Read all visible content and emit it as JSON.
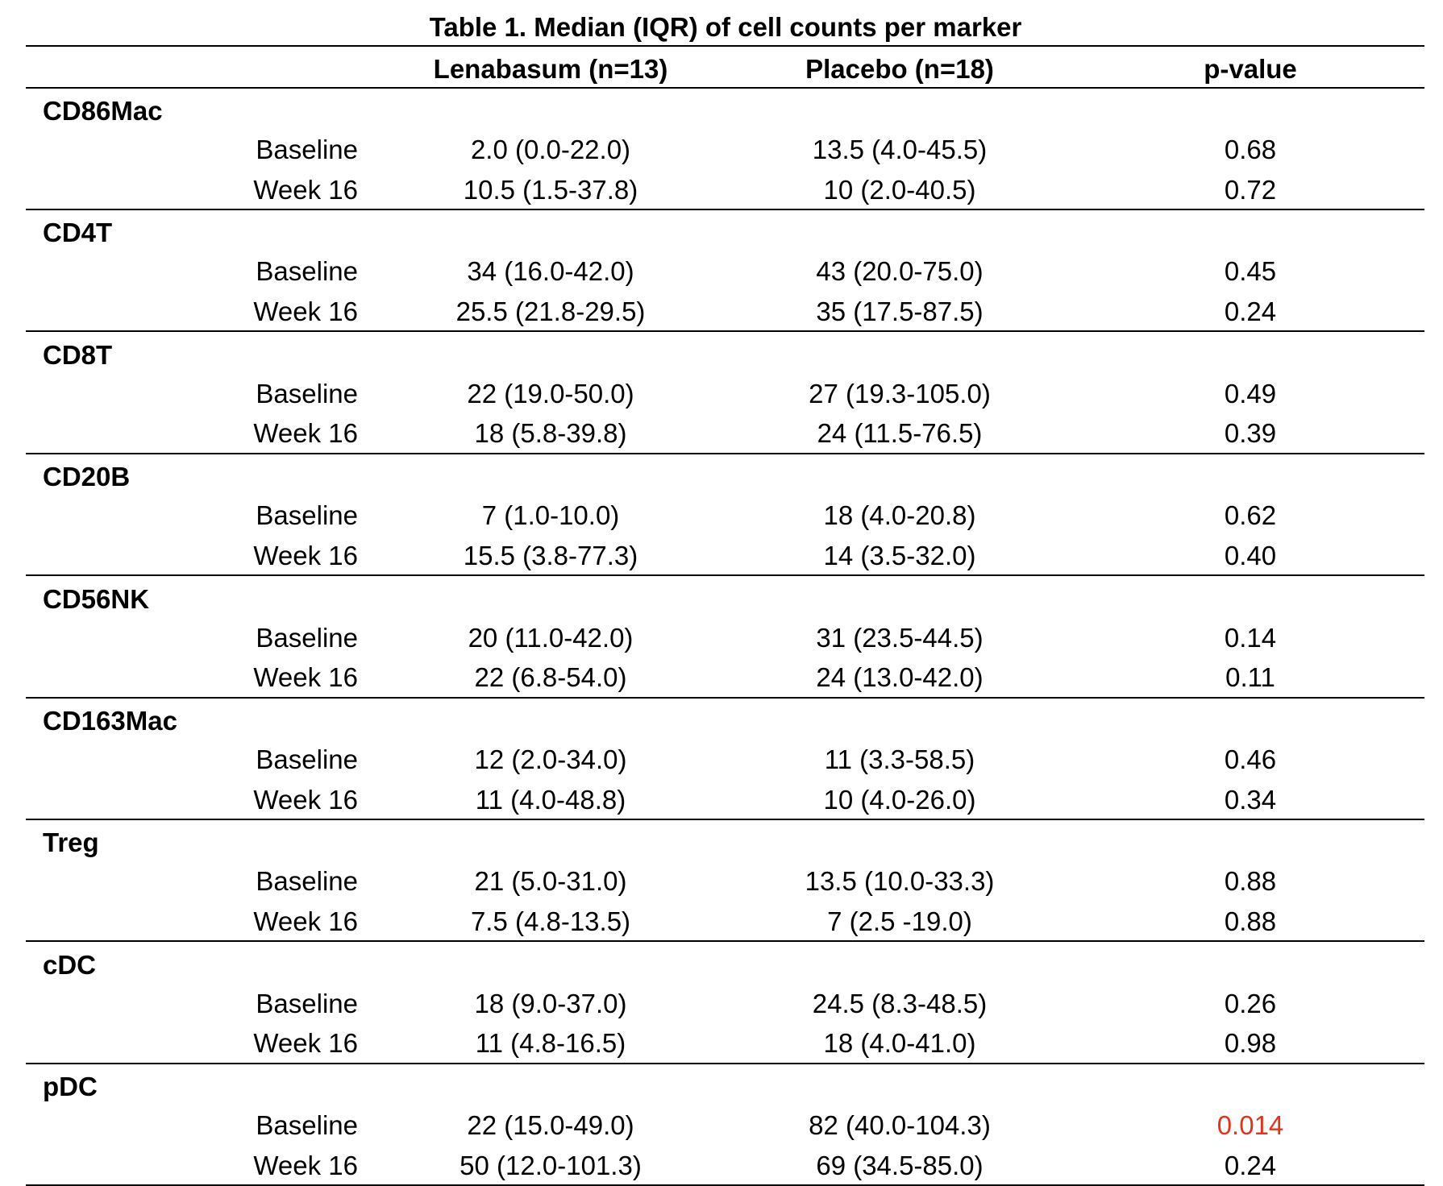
{
  "title": "Table 1. Median (IQR) of cell counts per marker",
  "table": {
    "columns": [
      "Lenabasum (n=13)",
      "Placebo (n=18)",
      "p-value"
    ],
    "groups": [
      {
        "name": "CD86Mac",
        "rows": [
          {
            "label": "Baseline",
            "lenabasum": "2.0 (0.0-22.0)",
            "placebo": "13.5 (4.0-45.5)",
            "p": "0.68"
          },
          {
            "label": "Week 16",
            "lenabasum": "10.5 (1.5-37.8)",
            "placebo": "10 (2.0-40.5)",
            "p": "0.72"
          }
        ]
      },
      {
        "name": "CD4T",
        "rows": [
          {
            "label": "Baseline",
            "lenabasum": "34 (16.0-42.0)",
            "placebo": "43 (20.0-75.0)",
            "p": "0.45"
          },
          {
            "label": "Week 16",
            "lenabasum": "25.5 (21.8-29.5)",
            "placebo": "35 (17.5-87.5)",
            "p": "0.24"
          }
        ]
      },
      {
        "name": "CD8T",
        "rows": [
          {
            "label": "Baseline",
            "lenabasum": "22 (19.0-50.0)",
            "placebo": "27 (19.3-105.0)",
            "p": "0.49"
          },
          {
            "label": "Week 16",
            "lenabasum": "18 (5.8-39.8)",
            "placebo": "24 (11.5-76.5)",
            "p": "0.39"
          }
        ]
      },
      {
        "name": "CD20B",
        "rows": [
          {
            "label": "Baseline",
            "lenabasum": "7 (1.0-10.0)",
            "placebo": "18 (4.0-20.8)",
            "p": "0.62"
          },
          {
            "label": "Week 16",
            "lenabasum": "15.5 (3.8-77.3)",
            "placebo": "14 (3.5-32.0)",
            "p": "0.40"
          }
        ]
      },
      {
        "name": "CD56NK",
        "rows": [
          {
            "label": "Baseline",
            "lenabasum": "20 (11.0-42.0)",
            "placebo": "31 (23.5-44.5)",
            "p": "0.14"
          },
          {
            "label": "Week 16",
            "lenabasum": "22 (6.8-54.0)",
            "placebo": "24 (13.0-42.0)",
            "p": "0.11"
          }
        ]
      },
      {
        "name": "CD163Mac",
        "rows": [
          {
            "label": "Baseline",
            "lenabasum": "12 (2.0-34.0)",
            "placebo": "11 (3.3-58.5)",
            "p": "0.46"
          },
          {
            "label": "Week 16",
            "lenabasum": "11 (4.0-48.8)",
            "placebo": "10 (4.0-26.0)",
            "p": "0.34"
          }
        ]
      },
      {
        "name": "Treg",
        "rows": [
          {
            "label": "Baseline",
            "lenabasum": "21 (5.0-31.0)",
            "placebo": "13.5 (10.0-33.3)",
            "p": "0.88"
          },
          {
            "label": "Week 16",
            "lenabasum": "7.5 (4.8-13.5)",
            "placebo": "7 (2.5 -19.0)",
            "p": "0.88"
          }
        ]
      },
      {
        "name": "cDC",
        "rows": [
          {
            "label": "Baseline",
            "lenabasum": "18 (9.0-37.0)",
            "placebo": "24.5 (8.3-48.5)",
            "p": "0.26"
          },
          {
            "label": "Week 16",
            "lenabasum": "11 (4.8-16.5)",
            "placebo": "18 (4.0-41.0)",
            "p": "0.98"
          }
        ]
      },
      {
        "name": "pDC",
        "rows": [
          {
            "label": "Baseline",
            "lenabasum": "22 (15.0-49.0)",
            "placebo": "82 (40.0-104.3)",
            "p": "0.014",
            "p_color": "#e2341d"
          },
          {
            "label": "Week 16",
            "lenabasum": "50 (12.0-101.3)",
            "placebo": "69 (34.5-85.0)",
            "p": "0.24"
          }
        ]
      }
    ]
  }
}
